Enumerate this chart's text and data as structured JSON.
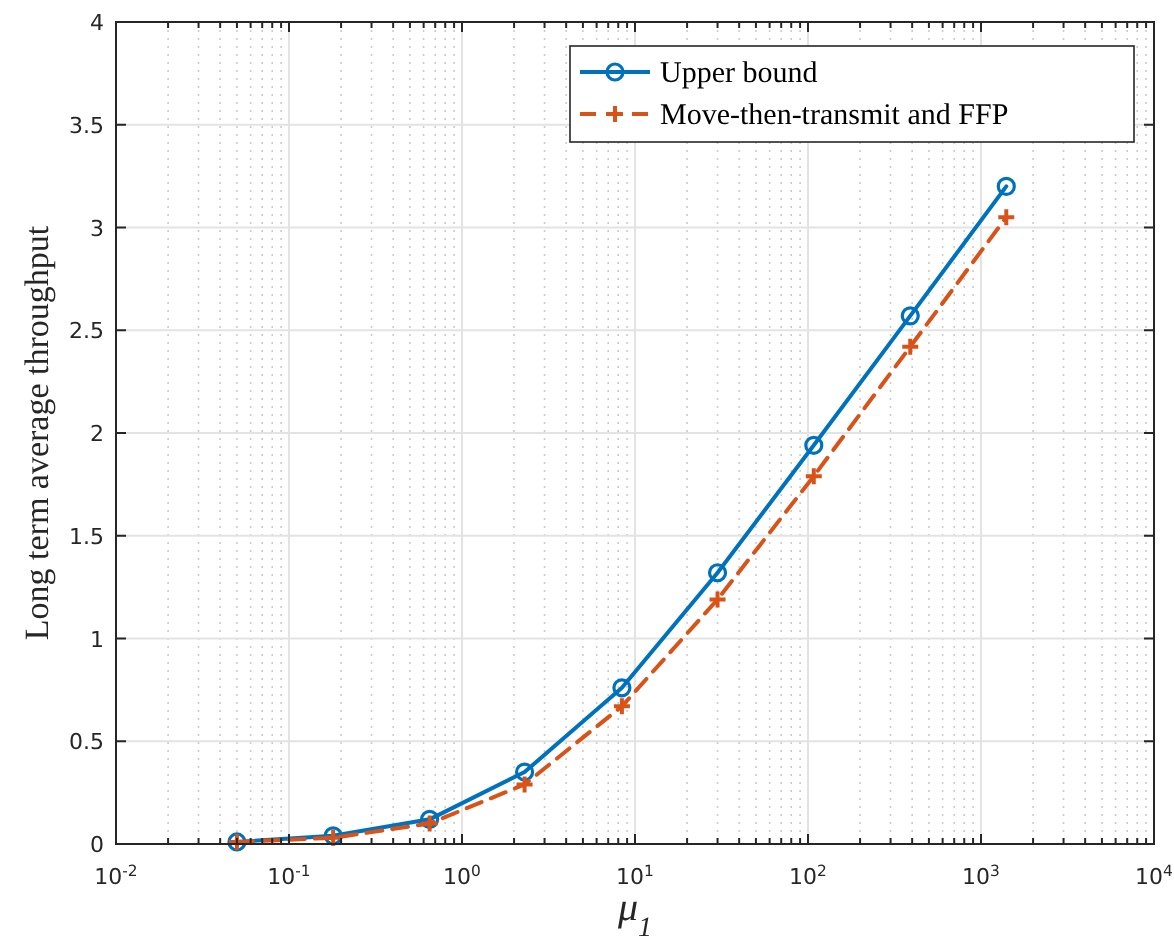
{
  "chart_data": {
    "type": "line",
    "xlabel": "μ$_{1}$",
    "ylabel": "Long term average throughput",
    "log": "x",
    "grid": true,
    "legend": "top right",
    "xlim": [
      0.01,
      10000
    ],
    "ylim": [
      0,
      4
    ],
    "xticks": [
      {
        "value": 0.01,
        "label": "10$^{-2}$"
      },
      {
        "value": 0.1,
        "label": "10$^{-1}$"
      },
      {
        "value": 1,
        "label": "10$^{0}$"
      },
      {
        "value": 10,
        "label": "10$^{1}$"
      },
      {
        "value": 100,
        "label": "10$^{2}$"
      },
      {
        "value": 1000,
        "label": "10$^{3}$"
      },
      {
        "value": 10000,
        "label": "10$^{4}$"
      }
    ],
    "yticks": [
      0,
      0.5,
      1,
      1.5,
      2,
      2.5,
      3,
      3.5,
      4
    ],
    "x": [
      0.05,
      0.18,
      0.65,
      2.3,
      8.4,
      30,
      108,
      390,
      1400
    ],
    "series": [
      {
        "name": "Upper bound",
        "color": "#0072bd",
        "marker": "circle",
        "line_style": "solid",
        "values": [
          0.01,
          0.04,
          0.12,
          0.35,
          0.76,
          1.32,
          1.94,
          2.57,
          3.2
        ]
      },
      {
        "name": "Move-then-transmit and FFP",
        "color": "#d95319",
        "marker": "cross",
        "line_style": "dashed",
        "values": [
          0.01,
          0.03,
          0.1,
          0.29,
          0.67,
          1.19,
          1.79,
          2.42,
          3.05
        ]
      }
    ]
  }
}
